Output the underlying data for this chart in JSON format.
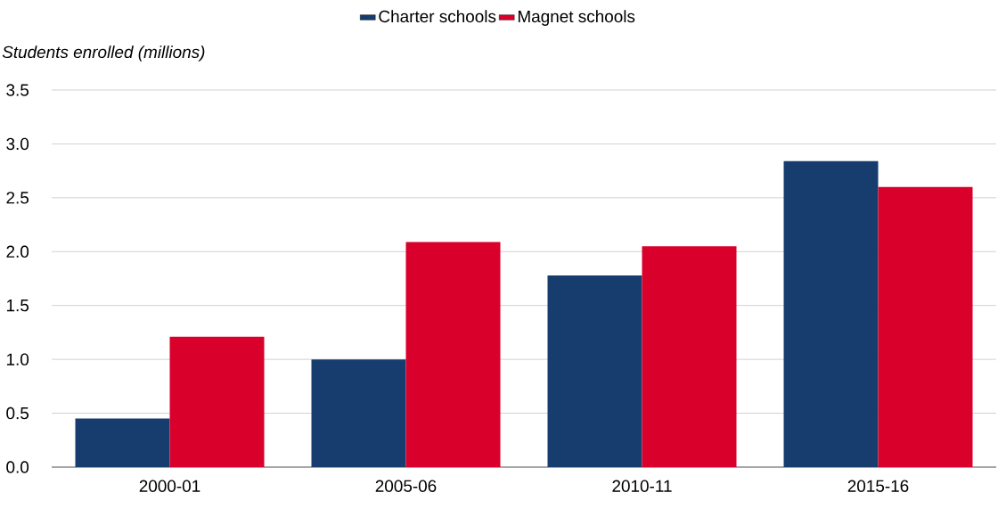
{
  "chart_data": {
    "type": "bar",
    "ylabel": "Students enrolled (millions)",
    "categories": [
      "2000-01",
      "2005-06",
      "2010-11",
      "2015-16"
    ],
    "series": [
      {
        "name": "Charter schools",
        "color": "#163d6e",
        "values": [
          0.45,
          1.0,
          1.78,
          2.84
        ]
      },
      {
        "name": "Magnet schools",
        "color": "#d9002b",
        "values": [
          1.21,
          2.09,
          2.05,
          2.6
        ]
      }
    ],
    "ylim": [
      0,
      3.5
    ],
    "yticks": [
      {
        "value": 0,
        "label": "0.0"
      },
      {
        "value": 0.5,
        "label": "0.5"
      },
      {
        "value": 1,
        "label": "1.0"
      },
      {
        "value": 1.5,
        "label": "1.5"
      },
      {
        "value": 2,
        "label": "2.0"
      },
      {
        "value": 2.5,
        "label": "2.5"
      },
      {
        "value": 3,
        "label": "3.0"
      },
      {
        "value": 3.5,
        "label": "3.5"
      }
    ],
    "grid": "y",
    "legend": "top"
  }
}
